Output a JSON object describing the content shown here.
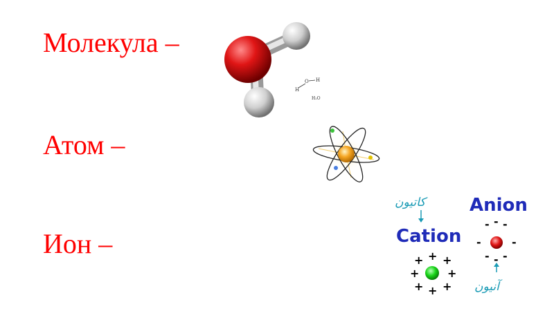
{
  "terms": {
    "molecule": "Молекула –",
    "atom": "Атом –",
    "ion": "Ион –"
  },
  "molecule_image": {
    "formula_h": "H",
    "formula_o": "O",
    "formula_h2": "H",
    "formula_label": "H₂O"
  },
  "ion_image": {
    "cation_label": "Cation",
    "anion_label": "Anion",
    "cation_script": "كاتيون",
    "anion_script": "آنيون",
    "plus": "+",
    "minus": "-"
  },
  "colors": {
    "term_text": "#ff0000",
    "oxygen": "#e01515",
    "hydrogen": "#d8d8d8",
    "nucleus": "#f5a623",
    "cation_ball": "#18d418",
    "anion_ball": "#e01515",
    "label_blue": "#1f2bb8",
    "script_teal": "#1a9bb5"
  }
}
